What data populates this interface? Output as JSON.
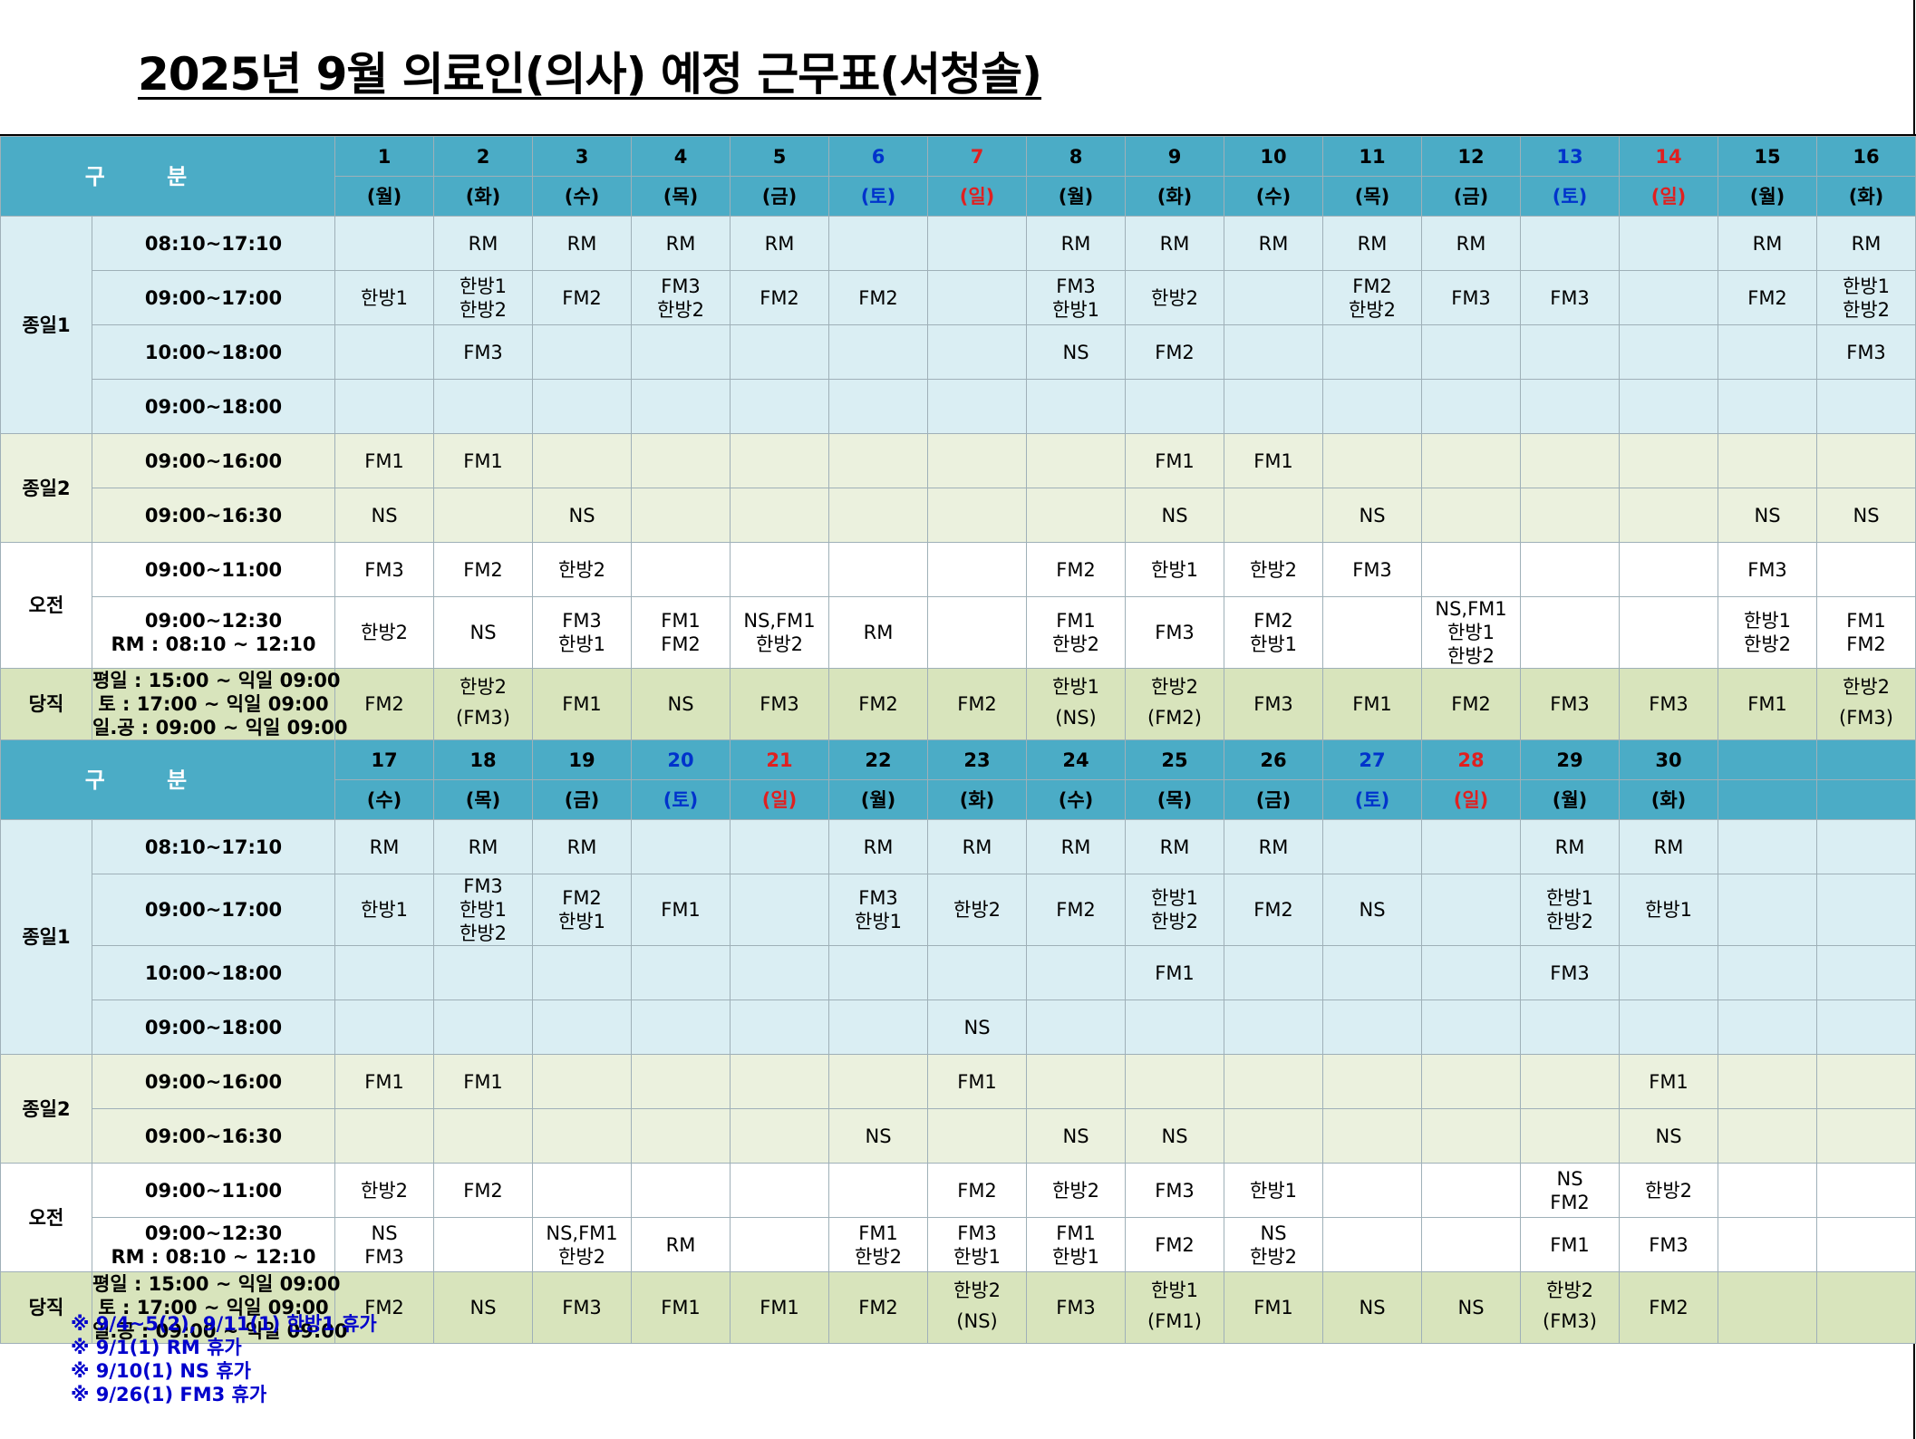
{
  "title": "2025년 9월  의료인(의사) 예정 근무표(서청솔)",
  "header_label": "구 분",
  "groups": {
    "jong1": "종일1",
    "jong2": "종일2",
    "ojeon": "오전",
    "dangjik": "당직"
  },
  "times": {
    "t1": "08:10~17:10",
    "t2": "09:00~17:00",
    "t3": "10:00~18:00",
    "t4": "09:00~18:00",
    "t5": "09:00~16:00",
    "t6": "09:00~16:30",
    "t7": "09:00~11:00",
    "t8a": "09:00~12:30",
    "t8b": "RM : 08:10 ~ 12:10"
  },
  "dangjik_note": [
    "평일 : 15:00 ~ 익일 09:00",
    "토    : 17:00 ~ 익일 09:00",
    "일.공 : 09:00 ~ 익일 09:00"
  ],
  "colors": {
    "header_bg": "#4bacc6",
    "row_blue": "#daeef3",
    "row_green": "#ebf1de",
    "row_dang": "#d8e4bc",
    "saturday": "#0033cc",
    "sunday": "#e02020",
    "note_text": "#0000cc"
  },
  "week1": {
    "days": [
      "1",
      "2",
      "3",
      "4",
      "5",
      "6",
      "7",
      "8",
      "9",
      "10",
      "11",
      "12",
      "13",
      "14",
      "15",
      "16"
    ],
    "weekdays": [
      "(월)",
      "(화)",
      "(수)",
      "(목)",
      "(금)",
      "(토)",
      "(일)",
      "(월)",
      "(화)",
      "(수)",
      "(목)",
      "(금)",
      "(토)",
      "(일)",
      "(월)",
      "(화)"
    ],
    "day_colors": [
      "",
      "",
      "",
      "",
      "",
      "blue",
      "red",
      "",
      "",
      "",
      "",
      "",
      "blue",
      "red",
      "",
      ""
    ],
    "r1": [
      "",
      "RM",
      "RM",
      "RM",
      "RM",
      "",
      "",
      "RM",
      "RM",
      "RM",
      "RM",
      "RM",
      "",
      "",
      "RM",
      "RM"
    ],
    "r2": [
      [
        "한방1"
      ],
      [
        "한방1",
        "한방2"
      ],
      [
        "FM2"
      ],
      [
        "FM3",
        "한방2"
      ],
      [
        "FM2"
      ],
      [
        "FM2"
      ],
      [],
      [
        "FM3",
        "한방1"
      ],
      [
        "한방2"
      ],
      [],
      [
        "FM2",
        "한방2"
      ],
      [
        "FM3"
      ],
      [
        "FM3"
      ],
      [],
      [
        "FM2"
      ],
      [
        "한방1",
        "한방2"
      ]
    ],
    "r3": [
      "",
      "FM3",
      "",
      "",
      "",
      "",
      "",
      "NS",
      "FM2",
      "",
      "",
      "",
      "",
      "",
      "",
      "FM3"
    ],
    "r4": [
      "",
      "",
      "",
      "",
      "",
      "",
      "",
      "",
      "",
      "",
      "",
      "",
      "",
      "",
      "",
      ""
    ],
    "r5": [
      "FM1",
      "FM1",
      "",
      "",
      "",
      "",
      "",
      "",
      "FM1",
      "FM1",
      "",
      "",
      "",
      "",
      "",
      ""
    ],
    "r6": [
      "NS",
      "",
      "NS",
      "",
      "",
      "",
      "",
      "",
      "NS",
      "",
      "NS",
      "",
      "",
      "",
      "NS",
      "NS"
    ],
    "r7": [
      "FM3",
      "FM2",
      "한방2",
      "",
      "",
      "",
      "",
      "FM2",
      "한방1",
      "한방2",
      "FM3",
      "",
      "",
      "",
      "FM3",
      ""
    ],
    "r8": [
      [
        "한방2"
      ],
      [
        "NS"
      ],
      [
        "FM3",
        "한방1"
      ],
      [
        "FM1",
        "FM2"
      ],
      [
        "NS,FM1",
        "한방2"
      ],
      [
        "RM"
      ],
      [],
      [
        "FM1",
        "한방2"
      ],
      [
        "FM3"
      ],
      [
        "FM2",
        "한방1"
      ],
      [],
      [
        "NS,FM1",
        "한방1",
        "한방2"
      ],
      [],
      [],
      [
        "한방1",
        "한방2"
      ],
      [
        "FM1",
        "FM2"
      ]
    ],
    "dang": [
      [
        "FM2"
      ],
      [
        "한방2",
        "(FM3)"
      ],
      [
        "FM1"
      ],
      [
        "NS"
      ],
      [
        "FM3"
      ],
      [
        "FM2"
      ],
      [
        "FM2"
      ],
      [
        "한방1",
        "(NS)"
      ],
      [
        "한방2",
        "(FM2)"
      ],
      [
        "FM3"
      ],
      [
        "FM1"
      ],
      [
        "FM2"
      ],
      [
        "FM3"
      ],
      [
        "FM3"
      ],
      [
        "FM1"
      ],
      [
        "한방2",
        "(FM3)"
      ]
    ]
  },
  "week2": {
    "days": [
      "17",
      "18",
      "19",
      "20",
      "21",
      "22",
      "23",
      "24",
      "25",
      "26",
      "27",
      "28",
      "29",
      "30",
      "",
      ""
    ],
    "weekdays": [
      "(수)",
      "(목)",
      "(금)",
      "(토)",
      "(일)",
      "(월)",
      "(화)",
      "(수)",
      "(목)",
      "(금)",
      "(토)",
      "(일)",
      "(월)",
      "(화)",
      "",
      ""
    ],
    "day_colors": [
      "",
      "",
      "",
      "blue",
      "red",
      "",
      "",
      "",
      "",
      "",
      "blue",
      "red",
      "",
      "",
      "",
      ""
    ],
    "r1": [
      "RM",
      "RM",
      "RM",
      "",
      "",
      "RM",
      "RM",
      "RM",
      "RM",
      "RM",
      "",
      "",
      "RM",
      "RM",
      "",
      ""
    ],
    "r2": [
      [
        "한방1"
      ],
      [
        "FM3",
        "한방1",
        "한방2"
      ],
      [
        "FM2",
        "한방1"
      ],
      [
        "FM1"
      ],
      [],
      [
        "FM3",
        "한방1"
      ],
      [
        "한방2"
      ],
      [
        "FM2"
      ],
      [
        "한방1",
        "한방2"
      ],
      [
        "FM2"
      ],
      [
        "NS"
      ],
      [],
      [
        "한방1",
        "한방2"
      ],
      [
        "한방1"
      ],
      [],
      []
    ],
    "r3": [
      "",
      "",
      "",
      "",
      "",
      "",
      "",
      "",
      "FM1",
      "",
      "",
      "",
      "FM3",
      "",
      "",
      ""
    ],
    "r4": [
      "",
      "",
      "",
      "",
      "",
      "",
      "NS",
      "",
      "",
      "",
      "",
      "",
      "",
      "",
      "",
      ""
    ],
    "r5": [
      "FM1",
      "FM1",
      "",
      "",
      "",
      "",
      "FM1",
      "",
      "",
      "",
      "",
      "",
      "",
      "FM1",
      "",
      ""
    ],
    "r6": [
      "",
      "",
      "",
      "",
      "",
      "NS",
      "",
      "NS",
      "NS",
      "",
      "",
      "",
      "",
      "NS",
      "",
      ""
    ],
    "r7": [
      [
        "한방2"
      ],
      [
        "FM2"
      ],
      [],
      [],
      [],
      [],
      [
        "FM2"
      ],
      [
        "한방2"
      ],
      [
        "FM3"
      ],
      [
        "한방1"
      ],
      [],
      [],
      [
        "NS",
        "FM2"
      ],
      [
        "한방2"
      ],
      [],
      []
    ],
    "r8": [
      [
        "NS",
        "FM3"
      ],
      [],
      [
        "NS,FM1",
        "한방2"
      ],
      [
        "RM"
      ],
      [],
      [
        "FM1",
        "한방2"
      ],
      [
        "FM3",
        "한방1"
      ],
      [
        "FM1",
        "한방1"
      ],
      [
        "FM2"
      ],
      [
        "NS",
        "한방2"
      ],
      [],
      [],
      [
        "FM1"
      ],
      [
        "FM3"
      ],
      [],
      []
    ],
    "dang": [
      [
        "FM2"
      ],
      [
        "NS"
      ],
      [
        "FM3"
      ],
      [
        "FM1"
      ],
      [
        "FM1"
      ],
      [
        "FM2"
      ],
      [
        "한방2",
        "(NS)"
      ],
      [
        "FM3"
      ],
      [
        "한방1",
        "(FM1)"
      ],
      [
        "FM1"
      ],
      [
        "NS"
      ],
      [
        "NS"
      ],
      [
        "한방2",
        "(FM3)"
      ],
      [
        "FM2"
      ],
      [],
      []
    ]
  },
  "notes": [
    "※ 9/4~5(2), 9/11(1) 한방1 휴가",
    "※ 9/1(1) RM 휴가",
    "※ 9/10(1) NS 휴가",
    "※ 9/26(1) FM3 휴가"
  ]
}
